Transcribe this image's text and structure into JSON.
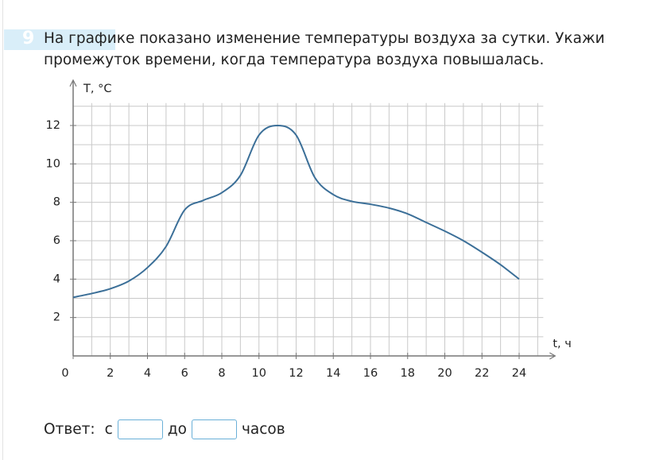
{
  "question": {
    "number": "9",
    "text": "На графике показано изменение температуры воздуха за сутки. Укажи промежуток времени, когда температура воздуха повышалась."
  },
  "chart_data": {
    "type": "line",
    "x_label": "t, ч",
    "y_label": "T, °C",
    "x": [
      0,
      1,
      2,
      3,
      4,
      5,
      6,
      7,
      8,
      9,
      10,
      11,
      12,
      13,
      14,
      15,
      16,
      17,
      18,
      19,
      20,
      21,
      22,
      23,
      24
    ],
    "series": [
      {
        "color": "#3b6f98",
        "values": [
          3.05,
          3.25,
          3.5,
          3.9,
          4.6,
          5.7,
          7.6,
          8.1,
          8.5,
          9.4,
          11.5,
          12,
          11.5,
          9.3,
          8.4,
          8.05,
          7.9,
          7.7,
          7.4,
          6.95,
          6.5,
          6,
          5.4,
          4.75,
          4.0
        ]
      }
    ],
    "xlim": [
      0,
      25
    ],
    "ylim": [
      0,
      13
    ],
    "xticks": [
      0,
      2,
      4,
      6,
      8,
      10,
      12,
      14,
      16,
      18,
      20,
      22,
      24
    ],
    "yticks": [
      2,
      4,
      6,
      8,
      10,
      12
    ],
    "xgrid": [
      1,
      2,
      3,
      4,
      5,
      6,
      7,
      8,
      9,
      10,
      11,
      12,
      13,
      14,
      15,
      16,
      17,
      18,
      19,
      20,
      21,
      22,
      23,
      24,
      25
    ],
    "ygrid": [
      1,
      2,
      3,
      4,
      5,
      6,
      7,
      8,
      9,
      10,
      11,
      12,
      13
    ],
    "grid": true
  },
  "answer": {
    "label": "Ответ:",
    "from": "с",
    "to": "до",
    "unit": "часов"
  }
}
